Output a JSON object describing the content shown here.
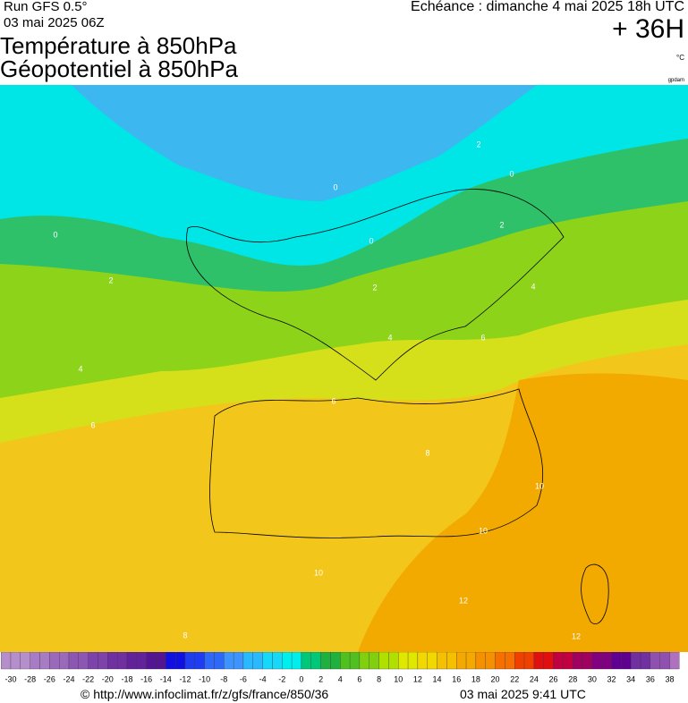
{
  "header": {
    "run": "Run GFS 0.5°",
    "date": "03 mai 2025 06Z",
    "title_1": "Température à 850hPa",
    "title_2": "Géopotentiel à 850hPa",
    "echeance": "Echéance : dimanche 4 mai 2025 18h UTC",
    "lead": "+ 36H",
    "unit": "°C",
    "credit": "gpdam"
  },
  "map": {
    "contour_labels": [
      2,
      0,
      0,
      0,
      0,
      2,
      2,
      2,
      4,
      4,
      4,
      6,
      6,
      6,
      8,
      10,
      10,
      10,
      12,
      12,
      8
    ]
  },
  "legend": {
    "ticks": [
      -30,
      -28,
      -26,
      -24,
      -22,
      -20,
      -18,
      -16,
      -14,
      -12,
      -10,
      -8,
      -6,
      -4,
      -2,
      0,
      2,
      4,
      6,
      8,
      10,
      12,
      14,
      16,
      18,
      20,
      22,
      24,
      26,
      28,
      30,
      32,
      34,
      36,
      38
    ]
  },
  "footer": {
    "url": "© http://www.infoclimat.fr/z/gfs/france/850/36",
    "time": "03 mai 2025  9:41 UTC"
  }
}
